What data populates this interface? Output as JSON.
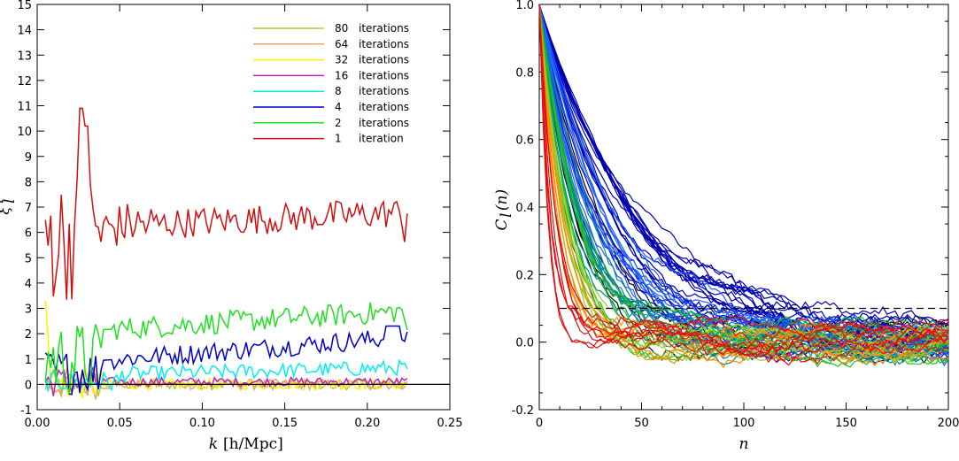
{
  "chart_data": [
    {
      "type": "line",
      "xlabel_var": "k",
      "xlabel_unit": "[h/Mpc]",
      "ylabel_main": "ξ",
      "ylabel_sup": "i",
      "ylabel_sub": "l",
      "xlim": [
        0,
        0.25
      ],
      "ylim": [
        -1,
        15
      ],
      "xticks": [
        "0.00",
        "0.05",
        "0.10",
        "0.15",
        "0.20",
        "0.25"
      ],
      "yticks": [
        "-1",
        "0",
        "1",
        "2",
        "3",
        "4",
        "5",
        "6",
        "7",
        "8",
        "9",
        "10",
        "11",
        "12",
        "13",
        "14",
        "15"
      ],
      "legend_position": "top-right",
      "series": [
        {
          "name": "80",
          "label": "iterations",
          "color": "#b5c92b",
          "level": 0.0,
          "amp": 0.35
        },
        {
          "name": "64",
          "label": "iterations",
          "color": "#f0a060",
          "level": 0.0,
          "amp": 0.35
        },
        {
          "name": "32",
          "label": "iterations",
          "color": "#f5f500",
          "level": 0.0,
          "amp": 0.35
        },
        {
          "name": "16",
          "label": "iterations",
          "color": "#c020c0",
          "level": 0.1,
          "amp": 0.3
        },
        {
          "name": "8",
          "label": "iterations",
          "color": "#00f0f0",
          "level": 0.5,
          "amp": 0.3
        },
        {
          "name": "4",
          "label": "iterations",
          "color": "#0000c8",
          "level": 1.5,
          "amp": 0.4
        },
        {
          "name": "2",
          "label": "iterations",
          "color": "#20e020",
          "level": 2.7,
          "amp": 0.45
        },
        {
          "name": "1",
          "label": "iteration",
          "color": "#d01010",
          "level": 6.5,
          "amp": 0.6
        }
      ],
      "reference_line": 0
    },
    {
      "type": "line",
      "xlabel": "n",
      "ylabel_main": "C",
      "ylabel_sub": "l",
      "ylabel_arg": "(n)",
      "xlim": [
        0,
        200
      ],
      "ylim": [
        -0.2,
        1.0
      ],
      "xticks": [
        "0",
        "50",
        "100",
        "150",
        "200"
      ],
      "yticks": [
        "-0.2",
        "0.0",
        "0.2",
        "0.4",
        "0.6",
        "0.8",
        "1.0"
      ],
      "threshold_line": 0.1,
      "curve_groups": [
        {
          "color": "#e01010",
          "count": 8,
          "decay_min": 4,
          "decay_max": 9
        },
        {
          "color": "#ff8c00",
          "count": 6,
          "decay_min": 7,
          "decay_max": 12
        },
        {
          "color": "#9acd32",
          "count": 6,
          "decay_min": 10,
          "decay_max": 16
        },
        {
          "color": "#20c020",
          "count": 8,
          "decay_min": 12,
          "decay_max": 22
        },
        {
          "color": "#008b8b",
          "count": 8,
          "decay_min": 16,
          "decay_max": 28
        },
        {
          "color": "#1e5fff",
          "count": 14,
          "decay_min": 20,
          "decay_max": 40
        },
        {
          "color": "#0000b0",
          "count": 22,
          "decay_min": 25,
          "decay_max": 55
        },
        {
          "color": "#000000",
          "count": 6,
          "decay_min": 10,
          "decay_max": 30
        }
      ]
    }
  ]
}
